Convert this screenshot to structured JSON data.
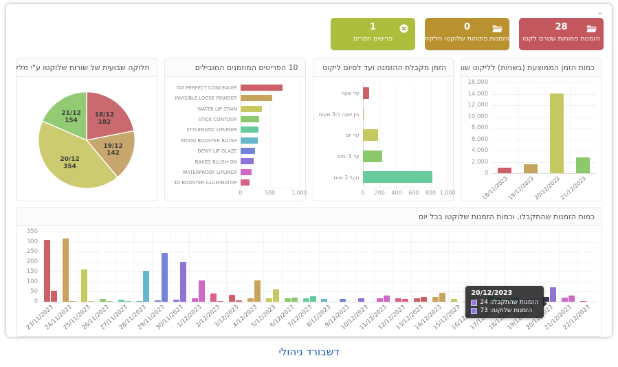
{
  "window": {
    "minimize": "–"
  },
  "caption": "דשבורד ניהולי",
  "kpi_cards": [
    {
      "value": "28",
      "label": "הזמנות פתוחות שטרם לקטו",
      "color": "#c4575e",
      "icon": "open-folder-icon"
    },
    {
      "value": "0",
      "label": "הזמנות פתוחות שלוקטו חלקית",
      "color": "#b9912e",
      "icon": "open-folder-icon"
    },
    {
      "value": "1",
      "label": "פריטים חסרים",
      "color": "#adbe3d",
      "icon": "circle-x-icon"
    }
  ],
  "chart_data": [
    {
      "id": "avg_line_pick_time_seconds",
      "type": "bar",
      "title": "כמות הזמן הממוצעת (בשניות) לליקוט שורה",
      "categories": [
        "18/12/2023",
        "19/12/2023",
        "20/12/2023",
        "21/12/2023"
      ],
      "values": [
        1000,
        1600,
        14100,
        2800
      ],
      "colors": [
        "#cd5f66",
        "#c7a45b",
        "#c6c960",
        "#8cc96c"
      ],
      "ylim": [
        0,
        16000
      ],
      "ytick_step": 2000,
      "grid": true,
      "legend": false
    },
    {
      "id": "order_receipt_to_pick_duration",
      "type": "bar-horizontal",
      "title": "הזמן מקבלת ההזמנה ועד לסיום ליקוט",
      "categories": [
        "עד שעה",
        "בין שעה ל-3 שעות",
        "עד יום",
        "עד 3 ימים",
        "מעל 3 ימים"
      ],
      "values": [
        80,
        15,
        185,
        230,
        820
      ],
      "colors": [
        "#cd5f66",
        "#c7a45b",
        "#c6c960",
        "#8cc96c",
        "#67cb9d"
      ],
      "xlim": [
        0,
        1000
      ],
      "xticks": [
        0,
        200,
        400,
        600,
        800,
        1000
      ],
      "grid": true,
      "legend": false
    },
    {
      "id": "top_10_ordered_items",
      "type": "bar-horizontal",
      "title": "10 הפריטים המוזמנים המובילים",
      "categories": [
        "TAY PERFECT CONCEALER",
        "INVISIBLE LOOSE POWDER",
        "WATER LIP STAIN",
        "STICK CONTOUR",
        "STYLEMATIC LIPLINER",
        "MOOD BOOSTER BLUSH",
        "DEWY LIP GLAZE",
        "BAKED BLUSH-ON",
        "WATERPROOF LIPLINER",
        "3D BOOSTER ILLUMINATOR"
      ],
      "values": [
        710,
        535,
        360,
        315,
        305,
        295,
        250,
        230,
        195,
        150
      ],
      "colors": [
        "#cd5f66",
        "#c7a45b",
        "#c6c960",
        "#8cc96c",
        "#67cb9d",
        "#64b7cd",
        "#7285d8",
        "#9172d6",
        "#cc6ac5",
        "#d96188"
      ],
      "xlim": [
        0,
        1000
      ],
      "xticks": [
        0,
        500,
        1000
      ],
      "grid": true,
      "legend": false
    },
    {
      "id": "weekly_picked_lines_by_pickers",
      "type": "pie",
      "title": "חלוקה שבועית של שורות שלוקטו ע\"י מלקטים",
      "slices": [
        {
          "label": "18/12",
          "value": 182,
          "color": "#c96a6e"
        },
        {
          "label": "19/12",
          "value": 142,
          "color": "#c8a76e"
        },
        {
          "label": "20/12",
          "value": 354,
          "color": "#cccb6f"
        },
        {
          "label": "21/12",
          "value": 154,
          "color": "#93cb74"
        }
      ],
      "legend": false
    },
    {
      "id": "daily_orders_received_vs_picked",
      "type": "bar",
      "title": "כמות הזמנות שהתקבלו, וכמות הזמנות שלוקטו בכל יום",
      "categories": [
        "23/11/2023",
        "24/11/2023",
        "25/11/2023",
        "26/11/2023",
        "27/11/2023",
        "28/11/2023",
        "29/11/2023",
        "30/11/2023",
        "1/12/2023",
        "2/12/2023",
        "3/12/2023",
        "4/12/2023",
        "5/12/2023",
        "6/12/2023",
        "7/12/2023",
        "8/12/2023",
        "9/12/2023",
        "10/12/2023",
        "11/12/2023",
        "12/12/2023",
        "13/12/2023",
        "14/12/2023",
        "15/12/2023",
        "16/12/2023",
        "17/12/2023",
        "18/12/2023",
        "19/12/2023",
        "20/12/2023",
        "21/12/2023",
        "22/12/2023"
      ],
      "series": [
        {
          "name": "הזמנות שהתקבלו",
          "values": [
            310,
            315,
            162,
            15,
            10,
            5,
            8,
            12,
            18,
            40,
            35,
            16,
            18,
            17,
            17,
            13,
            15,
            18,
            17,
            17,
            18,
            25,
            15,
            22,
            30,
            15,
            10,
            24,
            20,
            4
          ]
        },
        {
          "name": "הזמנות שלוקטו",
          "values": [
            55,
            2,
            2,
            5,
            5,
            153,
            245,
            200,
            105,
            2,
            8,
            105,
            62,
            20,
            28,
            0,
            0,
            0,
            30,
            15,
            24,
            45,
            0,
            0,
            20,
            20,
            15,
            73,
            30,
            0
          ]
        }
      ],
      "palette": [
        "#cd5f66",
        "#c7a45b",
        "#c6c960",
        "#8cc96c",
        "#67cb9d",
        "#64b7cd",
        "#7285d8",
        "#9172d6",
        "#cc6ac5",
        "#d96188"
      ],
      "ylim": [
        0,
        350
      ],
      "ytick_step": 50,
      "grid": true,
      "highlight": {
        "category_index": 27,
        "series": 0,
        "color": "#3b3452"
      },
      "tooltip": {
        "title": "20/12/2023",
        "rows": [
          {
            "swatch": "#9d79d3",
            "text": "הזמנות שהתקבלו: 24"
          },
          {
            "swatch": "#8d7bdb",
            "text": "הזמנות שלוקטו: 73"
          }
        ]
      }
    }
  ]
}
